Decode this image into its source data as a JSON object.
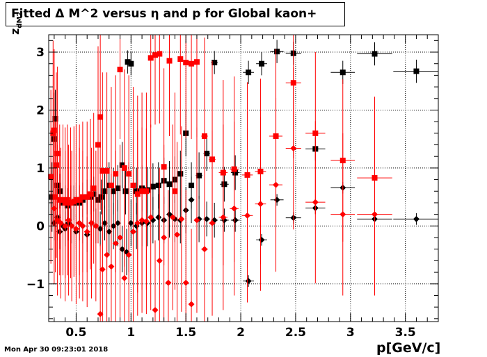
{
  "title": "Fitted Δ M^2 versus η and p for Global kaon+",
  "timestamp": "Mon Apr 30 09:23:01 2018",
  "xlabel": "p[GeV/c]",
  "ylabel_main": "z",
  "ylabel_sub": "dM2",
  "chart_data": {
    "type": "scatter",
    "title": "Fitted Δ M^2 versus η and p for Global kaon+",
    "xlabel": "p[GeV/c]",
    "ylabel": "z_dM2",
    "xlim": [
      0.25,
      3.8
    ],
    "ylim": [
      -1.65,
      3.3
    ],
    "xticks": [
      0.5,
      1,
      1.5,
      2,
      2.5,
      3,
      3.5
    ],
    "xtick_labels": [
      "0.5",
      "1",
      "1.5",
      "2",
      "2.5",
      "3",
      "3.5"
    ],
    "yticks": [
      -1,
      0,
      1,
      2,
      3
    ],
    "ytick_labels": [
      "−1",
      "0",
      "1",
      "2",
      "3"
    ],
    "grid": true,
    "colors": {
      "black": "#000000",
      "red": "#ff0000"
    },
    "series": [
      {
        "marker": "square",
        "color": "#000000",
        "x": [
          0.28,
          0.3,
          0.31,
          0.33,
          0.35,
          0.38,
          0.4,
          0.42,
          0.45,
          0.48,
          0.5,
          0.53,
          0.56,
          0.6,
          0.63,
          0.66,
          0.7,
          0.73,
          0.76,
          0.8,
          0.84,
          0.88,
          0.92,
          0.95,
          0.97,
          1.0,
          1.05,
          1.1,
          1.15,
          1.2,
          1.25,
          1.3,
          1.35,
          1.4,
          1.45,
          1.5,
          1.55,
          1.62,
          1.69,
          1.76,
          1.85,
          1.95,
          2.07,
          2.19,
          2.33,
          2.48,
          2.68,
          2.93,
          3.22,
          3.6
        ],
        "y": [
          0.5,
          1.5,
          1.85,
          0.7,
          0.6,
          0.4,
          0.4,
          0.35,
          0.4,
          0.4,
          0.45,
          0.4,
          0.45,
          0.5,
          0.5,
          0.55,
          0.45,
          0.5,
          0.6,
          0.7,
          0.6,
          0.65,
          1.05,
          0.6,
          2.83,
          2.8,
          0.6,
          0.65,
          0.62,
          0.68,
          0.7,
          0.78,
          0.72,
          0.8,
          0.9,
          1.6,
          0.7,
          0.87,
          1.25,
          2.82,
          0.72,
          0.92,
          2.65,
          2.8,
          3.01,
          2.98,
          1.33,
          2.65,
          2.97,
          2.67
        ],
        "xerr": [
          0.01,
          0.01,
          0.01,
          0.01,
          0.01,
          0.01,
          0.01,
          0.01,
          0.01,
          0.01,
          0.01,
          0.01,
          0.01,
          0.01,
          0.01,
          0.01,
          0.01,
          0.01,
          0.01,
          0.01,
          0.02,
          0.02,
          0.02,
          0.02,
          0.02,
          0.02,
          0.02,
          0.02,
          0.02,
          0.02,
          0.02,
          0.02,
          0.02,
          0.02,
          0.02,
          0.02,
          0.02,
          0.03,
          0.03,
          0.03,
          0.04,
          0.04,
          0.05,
          0.05,
          0.06,
          0.07,
          0.09,
          0.11,
          0.16,
          0.21
        ],
        "yerr": [
          0.6,
          0.8,
          0.5,
          0.4,
          0.3,
          0.3,
          0.3,
          0.3,
          0.3,
          0.3,
          0.3,
          0.3,
          0.3,
          0.3,
          0.3,
          0.3,
          0.3,
          0.3,
          0.3,
          0.4,
          0.4,
          0.4,
          0.4,
          0.4,
          0.2,
          0.2,
          0.4,
          0.4,
          0.4,
          0.4,
          0.4,
          0.4,
          0.4,
          0.4,
          0.4,
          0.4,
          0.4,
          0.4,
          0.3,
          0.2,
          0.3,
          0.3,
          0.2,
          0.2,
          0.2,
          0.2,
          0.2,
          0.2,
          0.2,
          0.2
        ]
      },
      {
        "marker": "diamond",
        "color": "#000000",
        "x": [
          0.3,
          0.33,
          0.35,
          0.38,
          0.4,
          0.43,
          0.46,
          0.5,
          0.53,
          0.56,
          0.6,
          0.64,
          0.68,
          0.72,
          0.76,
          0.8,
          0.84,
          0.88,
          0.92,
          0.96,
          1.0,
          1.05,
          1.1,
          1.15,
          1.2,
          1.25,
          1.3,
          1.35,
          1.4,
          1.45,
          1.5,
          1.55,
          1.62,
          1.69,
          1.76,
          1.85,
          1.95,
          2.07,
          2.19,
          2.33,
          2.48,
          2.68,
          2.93,
          3.22,
          3.6
        ],
        "y": [
          0.05,
          0.15,
          -0.1,
          0.0,
          -0.05,
          0.05,
          0.0,
          -0.1,
          0.05,
          0.0,
          -0.15,
          0.05,
          0.0,
          -0.05,
          0.05,
          -0.1,
          0.0,
          0.05,
          -0.4,
          -0.45,
          0.05,
          0.0,
          0.05,
          0.05,
          0.1,
          0.15,
          0.1,
          0.2,
          0.12,
          0.1,
          0.27,
          0.45,
          0.12,
          0.12,
          0.1,
          0.1,
          0.1,
          -0.95,
          -0.24,
          0.45,
          0.14,
          0.31,
          0.66,
          0.12,
          0.12
        ],
        "xerr": [
          0.01,
          0.01,
          0.01,
          0.01,
          0.01,
          0.01,
          0.01,
          0.01,
          0.01,
          0.01,
          0.01,
          0.01,
          0.01,
          0.01,
          0.01,
          0.02,
          0.02,
          0.02,
          0.02,
          0.02,
          0.02,
          0.02,
          0.02,
          0.02,
          0.02,
          0.02,
          0.02,
          0.02,
          0.02,
          0.02,
          0.02,
          0.02,
          0.03,
          0.03,
          0.03,
          0.04,
          0.04,
          0.05,
          0.05,
          0.06,
          0.07,
          0.09,
          0.11,
          0.16,
          0.21
        ],
        "yerr": [
          0.3,
          0.3,
          0.3,
          0.3,
          0.3,
          0.3,
          0.3,
          0.3,
          0.3,
          0.3,
          0.3,
          0.3,
          0.3,
          0.3,
          0.3,
          0.4,
          0.4,
          0.4,
          0.4,
          0.4,
          0.4,
          0.4,
          0.4,
          0.4,
          0.4,
          0.4,
          0.4,
          0.4,
          0.4,
          0.4,
          0.4,
          0.4,
          0.4,
          0.3,
          0.3,
          0.2,
          0.2,
          0.1,
          0.1,
          0.1,
          0.1,
          0.1,
          0.1,
          0.1,
          0.1
        ]
      },
      {
        "marker": "square",
        "color": "#ff0000",
        "x": [
          0.27,
          0.29,
          0.3,
          0.31,
          0.32,
          0.33,
          0.35,
          0.38,
          0.4,
          0.42,
          0.45,
          0.48,
          0.5,
          0.53,
          0.56,
          0.6,
          0.63,
          0.66,
          0.7,
          0.72,
          0.74,
          0.78,
          0.82,
          0.86,
          0.9,
          0.94,
          0.98,
          1.02,
          1.06,
          1.1,
          1.14,
          1.18,
          1.22,
          1.26,
          1.3,
          1.35,
          1.4,
          1.45,
          1.5,
          1.55,
          1.6,
          1.67,
          1.74,
          1.84,
          1.94,
          2.06,
          2.18,
          2.32,
          2.48,
          2.68,
          2.93,
          3.22
        ],
        "y": [
          0.85,
          1.6,
          1.65,
          0.5,
          1.05,
          1.25,
          0.45,
          0.45,
          0.4,
          0.45,
          0.4,
          0.42,
          0.45,
          0.45,
          0.5,
          0.5,
          0.55,
          0.65,
          1.4,
          1.88,
          0.95,
          0.95,
          0.7,
          0.9,
          2.7,
          1.0,
          0.9,
          0.7,
          0.55,
          0.6,
          0.6,
          2.9,
          2.95,
          2.97,
          1.02,
          2.85,
          0.6,
          2.88,
          2.82,
          2.8,
          2.83,
          1.55,
          1.15,
          0.92,
          0.98,
          0.88,
          0.94,
          1.55,
          2.47,
          1.6,
          1.13,
          0.83
        ],
        "xerr": [
          0.01,
          0.01,
          0.01,
          0.01,
          0.01,
          0.01,
          0.01,
          0.01,
          0.01,
          0.01,
          0.01,
          0.01,
          0.01,
          0.01,
          0.01,
          0.01,
          0.01,
          0.01,
          0.01,
          0.01,
          0.01,
          0.02,
          0.02,
          0.02,
          0.02,
          0.02,
          0.02,
          0.02,
          0.02,
          0.02,
          0.02,
          0.02,
          0.02,
          0.02,
          0.02,
          0.02,
          0.02,
          0.02,
          0.02,
          0.02,
          0.02,
          0.03,
          0.03,
          0.04,
          0.04,
          0.05,
          0.05,
          0.06,
          0.07,
          0.09,
          0.11,
          0.16
        ],
        "yerr": [
          1.5,
          1.6,
          1.4,
          1.3,
          1.6,
          1.5,
          1.3,
          1.3,
          1.3,
          1.3,
          1.3,
          1.3,
          1.3,
          1.3,
          1.3,
          1.3,
          1.3,
          1.3,
          1.7,
          1.6,
          1.7,
          1.7,
          1.7,
          1.7,
          1.2,
          1.7,
          1.7,
          1.7,
          1.7,
          1.7,
          1.7,
          1.2,
          1.2,
          1.2,
          1.7,
          1.3,
          1.7,
          1.3,
          1.3,
          1.3,
          1.3,
          1.7,
          1.7,
          1.6,
          1.6,
          1.6,
          1.6,
          1.5,
          1.3,
          1.4,
          1.4,
          1.4
        ]
      },
      {
        "marker": "diamond",
        "color": "#ff0000",
        "x": [
          0.3,
          0.33,
          0.36,
          0.4,
          0.43,
          0.46,
          0.5,
          0.53,
          0.56,
          0.6,
          0.64,
          0.68,
          0.72,
          0.74,
          0.78,
          0.82,
          0.86,
          0.9,
          0.94,
          0.98,
          1.02,
          1.06,
          1.1,
          1.14,
          1.18,
          1.22,
          1.26,
          1.3,
          1.34,
          1.38,
          1.42,
          1.46,
          1.5,
          1.55,
          1.6,
          1.67,
          1.74,
          1.84,
          1.94,
          2.06,
          2.18,
          2.32,
          2.48,
          2.68,
          2.93,
          3.22
        ],
        "y": [
          0.3,
          0.1,
          0.05,
          0.0,
          0.1,
          0.0,
          -0.05,
          0.05,
          0.0,
          -0.1,
          0.05,
          0.0,
          -1.52,
          -0.75,
          -0.5,
          -0.7,
          -0.3,
          -0.2,
          -0.9,
          -0.5,
          -0.1,
          0.05,
          0.1,
          0.08,
          0.15,
          -1.45,
          -0.6,
          -0.2,
          -0.98,
          0.15,
          -0.15,
          0.12,
          -0.98,
          -1.35,
          0.1,
          -0.4,
          0.05,
          0.15,
          0.3,
          0.18,
          0.38,
          0.71,
          1.34,
          0.41,
          0.2,
          0.2
        ],
        "xerr": [
          0.01,
          0.01,
          0.01,
          0.01,
          0.01,
          0.01,
          0.01,
          0.01,
          0.01,
          0.01,
          0.01,
          0.01,
          0.01,
          0.01,
          0.02,
          0.02,
          0.02,
          0.02,
          0.02,
          0.02,
          0.02,
          0.02,
          0.02,
          0.02,
          0.02,
          0.02,
          0.02,
          0.02,
          0.02,
          0.02,
          0.02,
          0.02,
          0.02,
          0.02,
          0.02,
          0.03,
          0.03,
          0.04,
          0.04,
          0.05,
          0.05,
          0.06,
          0.07,
          0.09,
          0.11,
          0.16
        ],
        "yerr": [
          1.3,
          1.3,
          1.3,
          1.3,
          1.3,
          1.3,
          1.3,
          1.3,
          1.3,
          1.3,
          1.3,
          1.3,
          1.2,
          1.3,
          1.6,
          1.6,
          1.6,
          1.6,
          1.6,
          1.6,
          1.6,
          1.6,
          1.6,
          1.6,
          1.6,
          1.2,
          1.6,
          1.6,
          1.6,
          1.6,
          1.6,
          1.6,
          1.6,
          1.3,
          1.6,
          1.6,
          1.6,
          1.6,
          1.5,
          1.5,
          1.5,
          1.5,
          1.4,
          1.4,
          1.4,
          1.4
        ]
      }
    ]
  }
}
